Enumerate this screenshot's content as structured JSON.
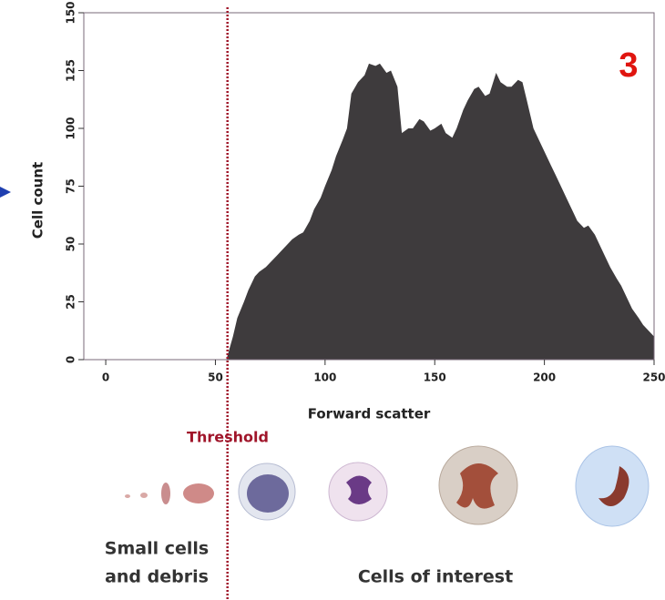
{
  "chart_data": {
    "type": "area",
    "y_label": "Cell count",
    "x_label": "Forward scatter",
    "x": [
      55,
      58,
      60,
      63,
      65,
      68,
      70,
      73,
      75,
      78,
      80,
      83,
      85,
      88,
      90,
      93,
      95,
      98,
      100,
      103,
      105,
      108,
      110,
      112,
      115,
      118,
      120,
      123,
      125,
      128,
      130,
      133,
      135,
      138,
      140,
      143,
      145,
      148,
      150,
      153,
      155,
      158,
      160,
      163,
      165,
      168,
      170,
      173,
      175,
      178,
      180,
      183,
      185,
      188,
      190,
      192,
      195,
      198,
      200,
      203,
      205,
      208,
      210,
      213,
      215,
      218,
      220,
      223,
      225,
      228,
      230,
      233,
      235,
      238,
      240,
      243,
      245,
      248,
      250
    ],
    "values": [
      0,
      10,
      18,
      25,
      30,
      36,
      38,
      40,
      42,
      45,
      47,
      50,
      52,
      54,
      55,
      60,
      65,
      70,
      75,
      82,
      88,
      95,
      100,
      115,
      120,
      123,
      128,
      127,
      128,
      124,
      125,
      118,
      98,
      100,
      100,
      104,
      103,
      99,
      100,
      102,
      98,
      96,
      100,
      108,
      112,
      117,
      118,
      114,
      115,
      124,
      120,
      118,
      118,
      121,
      120,
      112,
      100,
      94,
      90,
      84,
      80,
      74,
      70,
      64,
      60,
      57,
      58,
      54,
      50,
      44,
      40,
      35,
      32,
      26,
      22,
      18,
      15,
      12,
      10
    ],
    "color": "#3e3b3d",
    "xlim": [
      -10,
      250
    ],
    "xticks": [
      0,
      50,
      100,
      150,
      200,
      250
    ],
    "ylim": [
      0,
      150
    ],
    "yticks": [
      0,
      25,
      50,
      75,
      100,
      125,
      150
    ],
    "threshold": 55.5,
    "threshold_color": "#a0152a",
    "annotations": {
      "panel_number": "3",
      "threshold_label": "Threshold",
      "left_group": [
        "Small cells",
        "and debris"
      ],
      "right_group": "Cells of interest"
    }
  }
}
